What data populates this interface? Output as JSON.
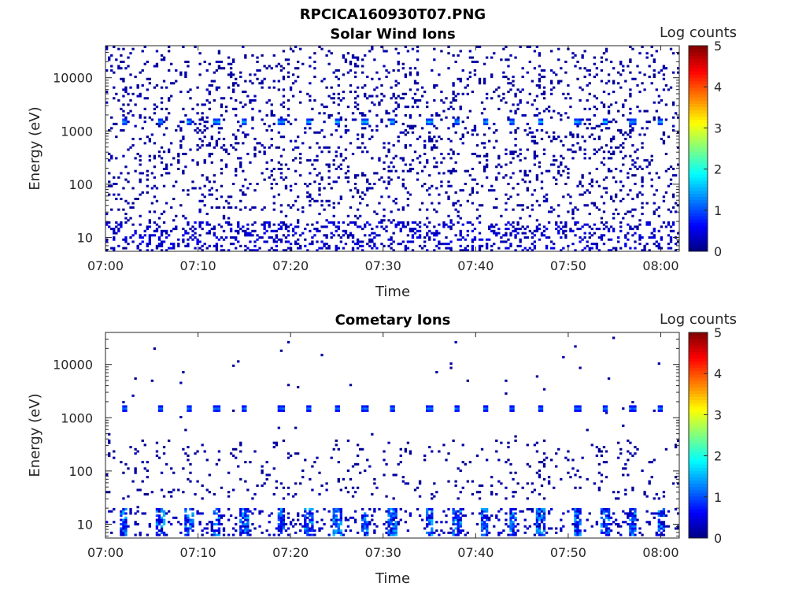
{
  "figure_title": "RPCICA160930T07.PNG",
  "colorbar_colormap": "jet",
  "chart_data": [
    {
      "type": "heatmap",
      "title": "Solar Wind Ions",
      "xlabel": "Time",
      "ylabel": "Energy (eV)",
      "y_scale": "log",
      "ylim": [
        5.5,
        40000
      ],
      "xlim": [
        "07:00",
        "08:02"
      ],
      "x_ticks": [
        "07:00",
        "07:10",
        "07:20",
        "07:30",
        "07:40",
        "07:50",
        "08:00"
      ],
      "y_ticks": [
        "10",
        "100",
        "1000",
        "10000"
      ],
      "colorbar": {
        "label": "Log counts",
        "range": [
          0,
          5
        ],
        "ticks": [
          "0",
          "1",
          "2",
          "3",
          "4",
          "5"
        ]
      },
      "features": {
        "background": "sparse single counts (log ~0) scattered from ~6 eV to ~30 keV",
        "solar_wind_peak_energy_eV": 1550,
        "solar_wind_peak_times": [
          "07:02",
          "07:06",
          "07:09",
          "07:12",
          "07:15",
          "07:19",
          "07:22",
          "07:25",
          "07:28",
          "07:31",
          "07:35",
          "07:38",
          "07:41",
          "07:44",
          "07:47",
          "07:51",
          "07:54",
          "07:57",
          "08:00"
        ],
        "solar_wind_peak_log_counts": 1.5,
        "low_energy_band_eV": [
          6,
          20
        ],
        "low_energy_band_log_counts": 0.4
      }
    },
    {
      "type": "heatmap",
      "title": "Cometary Ions",
      "xlabel": "Time",
      "ylabel": "Energy (eV)",
      "y_scale": "log",
      "ylim": [
        5.5,
        40000
      ],
      "xlim": [
        "07:00",
        "08:02"
      ],
      "x_ticks": [
        "07:00",
        "07:10",
        "07:20",
        "07:30",
        "07:40",
        "07:50",
        "08:00"
      ],
      "y_ticks": [
        "10",
        "100",
        "1000",
        "10000"
      ],
      "colorbar": {
        "label": "Log counts",
        "range": [
          0,
          5
        ],
        "ticks": [
          "0",
          "1",
          "2",
          "3",
          "4",
          "5"
        ]
      },
      "features": {
        "background": "sparse counts mostly between 30 and 400 eV, very few above 1 keV",
        "solar_wind_peak_energy_eV": 1550,
        "solar_wind_peak_times": [
          "07:02",
          "07:06",
          "07:09",
          "07:12",
          "07:15",
          "07:19",
          "07:22",
          "07:25",
          "07:28",
          "07:31",
          "07:35",
          "07:38",
          "07:41",
          "07:44",
          "07:47",
          "07:51",
          "07:54",
          "07:57",
          "08:00"
        ],
        "solar_wind_peak_log_counts": 1.2,
        "cometary_band_eV": [
          6,
          20
        ],
        "cometary_burst_times": [
          "07:02",
          "07:06",
          "07:09",
          "07:12",
          "07:15",
          "07:19",
          "07:22",
          "07:25",
          "07:28",
          "07:31",
          "07:35",
          "07:38",
          "07:41",
          "07:44",
          "07:47",
          "07:51",
          "07:54",
          "07:57",
          "08:00"
        ],
        "cometary_burst_log_counts": 1.3
      }
    }
  ]
}
